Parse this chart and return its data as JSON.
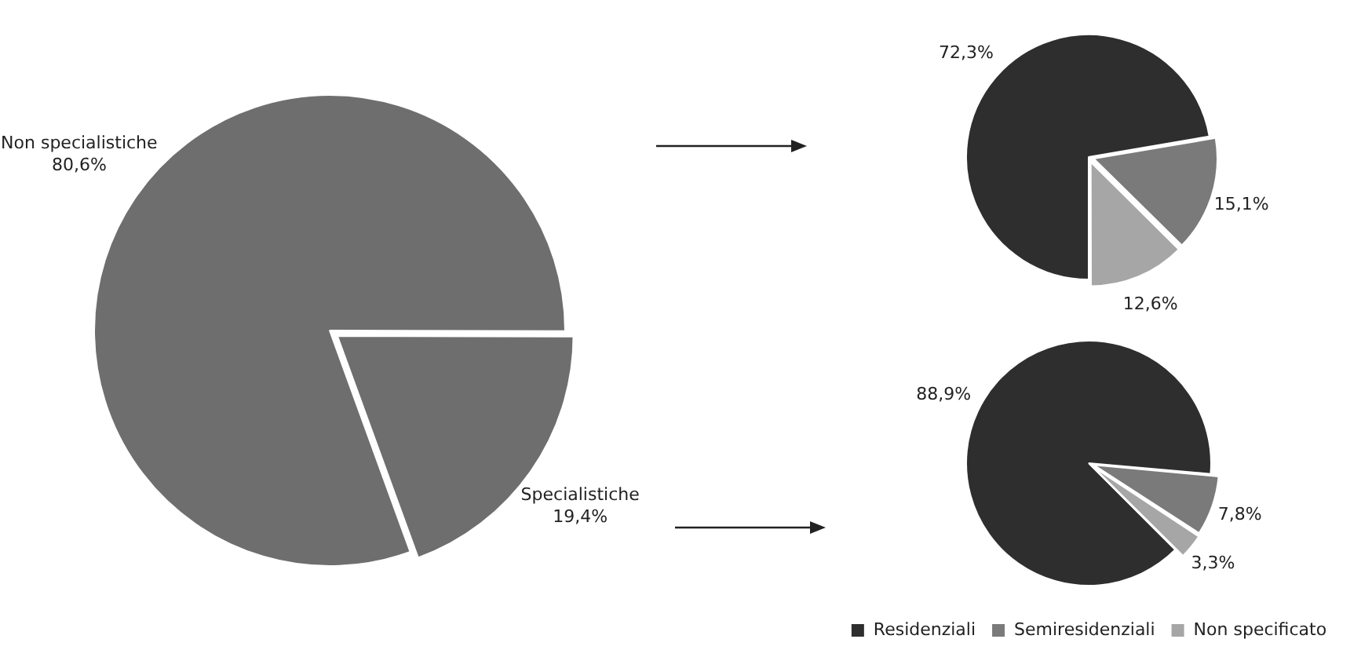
{
  "chart_data": [
    {
      "type": "pie",
      "categories": [
        "Non specialistiche",
        "Specialistiche"
      ],
      "values": [
        80.6,
        19.4
      ],
      "colors": [
        "#6e6e6e",
        "#6e6e6e"
      ],
      "value_labels": [
        "80,6%",
        "19,4%"
      ],
      "legend": false
    },
    {
      "type": "pie",
      "categories": [
        null,
        null,
        null
      ],
      "values": [
        72.3,
        15.1,
        12.6
      ],
      "colors": [
        "#2e2e2e",
        "#7a7a7a",
        "#a6a6a6"
      ],
      "value_labels": [
        "72,3%",
        "15,1%",
        "12,6%"
      ]
    },
    {
      "type": "pie",
      "categories": [
        "Residenziali",
        "Semiresidenziali",
        "Non specificato"
      ],
      "values": [
        88.9,
        7.8,
        3.3
      ],
      "colors": [
        "#2e2e2e",
        "#7a7a7a",
        "#a6a6a6"
      ],
      "value_labels": [
        "88,9%",
        "7,8%",
        "3,3%"
      ],
      "legend": "bottom"
    }
  ]
}
